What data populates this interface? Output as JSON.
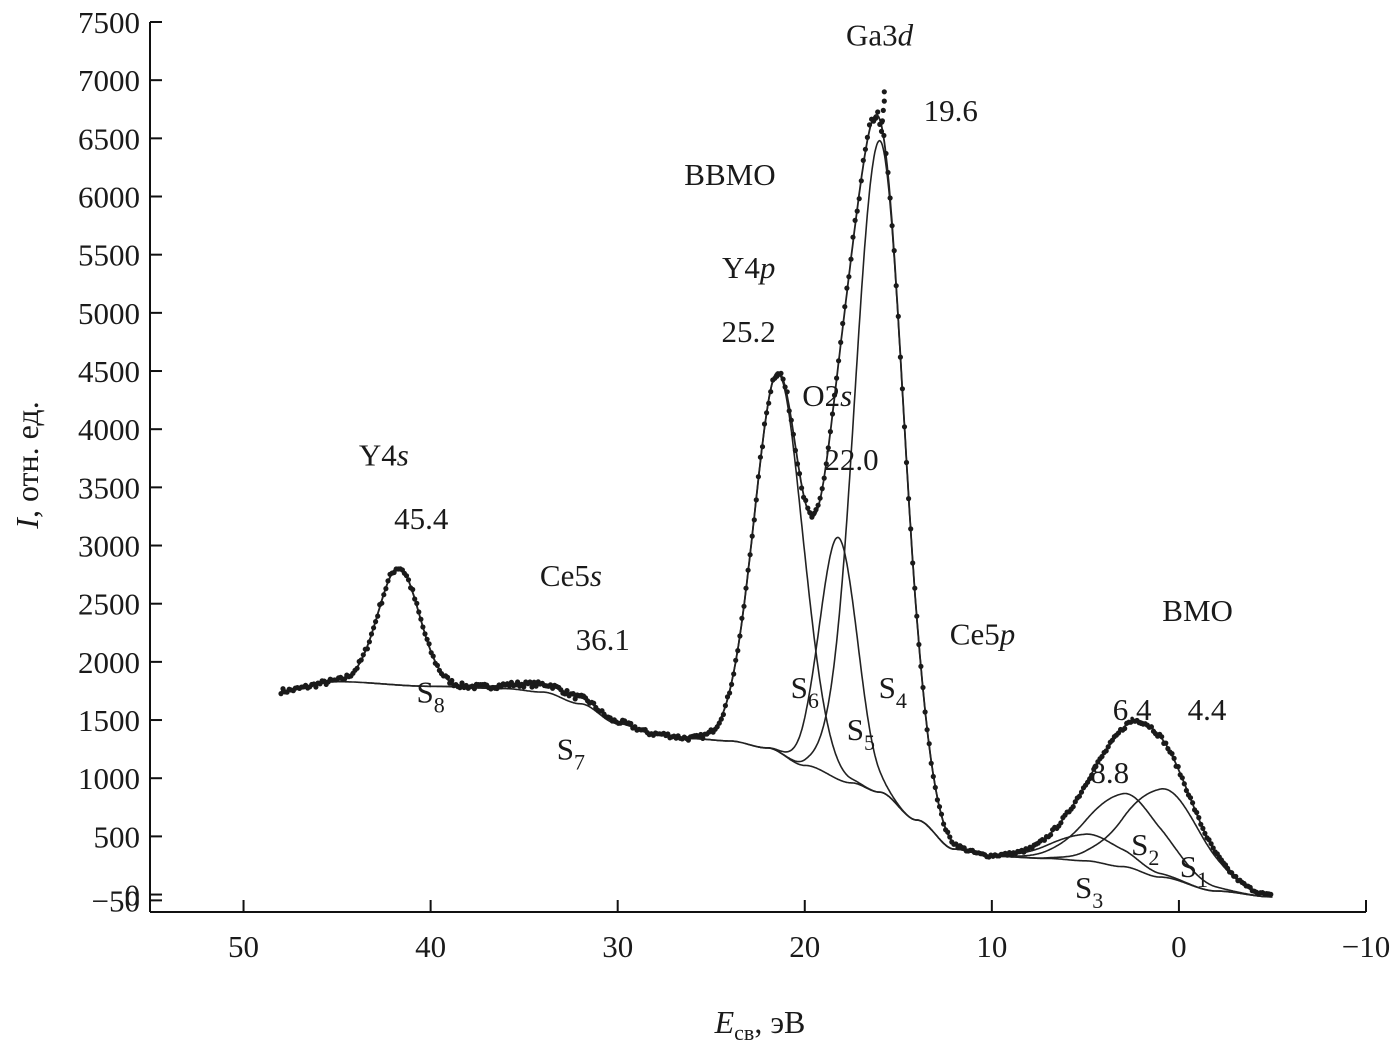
{
  "chart_data": {
    "type": "scatter",
    "xlabel_main": "E",
    "xlabel_sub": "св",
    "xlabel_unit": ", эВ",
    "ylabel_main": "I",
    "ylabel_unit": ", отн. ед.",
    "xlim": [
      55,
      -10
    ],
    "ylim": [
      -150,
      7500
    ],
    "x_reversed": true,
    "x_ticks": [
      50,
      40,
      30,
      20,
      10,
      0,
      -10
    ],
    "x_tick_labels": [
      "50",
      "40",
      "30",
      "20",
      "10",
      "0",
      "−10"
    ],
    "y_ticks": [
      -50,
      0,
      500,
      1000,
      1500,
      2000,
      2500,
      3000,
      3500,
      4000,
      4500,
      5000,
      5500,
      6000,
      6500,
      7000,
      7500
    ],
    "y_tick_labels": [
      "−50",
      "0",
      "500",
      "1000",
      "1500",
      "2000",
      "2500",
      "3000",
      "3500",
      "4000",
      "4500",
      "5000",
      "5500",
      "6000",
      "6500",
      "7000",
      "7500"
    ],
    "grid": false,
    "background_points": [
      [
        48,
        1750
      ],
      [
        45,
        1830
      ],
      [
        40,
        1790
      ],
      [
        36,
        1770
      ],
      [
        34,
        1740
      ],
      [
        32,
        1640
      ],
      [
        30,
        1470
      ],
      [
        28,
        1380
      ],
      [
        26,
        1340
      ],
      [
        24,
        1320
      ],
      [
        22,
        1260
      ],
      [
        20,
        1110
      ],
      [
        17.5,
        960
      ],
      [
        16,
        880
      ],
      [
        14,
        640
      ],
      [
        12,
        390
      ],
      [
        10,
        330
      ],
      [
        7,
        310
      ],
      [
        5,
        290
      ],
      [
        3,
        240
      ],
      [
        1,
        150
      ],
      [
        -2,
        30
      ],
      [
        -5,
        -20
      ]
    ],
    "peaks": [
      {
        "label_main": "S",
        "label_sub": "1",
        "center": 0.8,
        "height": 760,
        "width": 2.0
      },
      {
        "label_main": "S",
        "label_sub": "2",
        "center": 2.8,
        "height": 630,
        "width": 2.0
      },
      {
        "label_main": "S",
        "label_sub": "3",
        "center": 4.8,
        "height": 230,
        "width": 1.9
      },
      {
        "label_main": "S",
        "label_sub": "4",
        "center": 16.0,
        "height": 5600,
        "width": 1.3
      },
      {
        "label_main": "S",
        "label_sub": "5",
        "center": 18.2,
        "height": 2080,
        "width": 1.0
      },
      {
        "label_main": "S",
        "label_sub": "6",
        "center": 21.4,
        "height": 3250,
        "width": 1.3
      },
      {
        "label_main": "S",
        "label_sub": "7",
        "center": 33.5,
        "height": 70,
        "width": 2.0
      },
      {
        "label_main": "S",
        "label_sub": "8",
        "center": 41.7,
        "height": 1010,
        "width": 1.1
      }
    ],
    "annotations": [
      {
        "text": "Ga3",
        "italic": "d",
        "x": 16.0,
        "y": 7300
      },
      {
        "text": "19.6",
        "x": 12.2,
        "y": 6650
      },
      {
        "text": "ВВМО",
        "x": 24.0,
        "y": 6100
      },
      {
        "text": "Y4",
        "italic": "p",
        "x": 23.0,
        "y": 5300
      },
      {
        "text": "25.2",
        "x": 23.0,
        "y": 4750
      },
      {
        "text": "O2",
        "italic": "s",
        "x": 18.8,
        "y": 4200
      },
      {
        "text": "22.0",
        "x": 17.5,
        "y": 3650
      },
      {
        "text": "Y4",
        "italic": "s",
        "x": 42.5,
        "y": 3690
      },
      {
        "text": "45.4",
        "x": 40.5,
        "y": 3140
      },
      {
        "text": "Ce5",
        "italic": "s",
        "x": 32.5,
        "y": 2650
      },
      {
        "text": "36.1",
        "x": 30.8,
        "y": 2100
      },
      {
        "text": "Ce5",
        "italic": "p",
        "x": 10.5,
        "y": 2150
      },
      {
        "text": "ВМО",
        "x": -1.0,
        "y": 2350
      },
      {
        "text": "6.4",
        "x": 2.5,
        "y": 1500
      },
      {
        "text": "4.4",
        "x": -1.5,
        "y": 1500
      },
      {
        "text": "8.8",
        "x": 3.7,
        "y": 960
      }
    ],
    "peak_label_positions": [
      {
        "x": -0.8,
        "y": 150
      },
      {
        "x": 1.8,
        "y": 340
      },
      {
        "x": 4.8,
        "y": -30
      },
      {
        "x": 15.3,
        "y": 1690
      },
      {
        "x": 17.0,
        "y": 1330
      },
      {
        "x": 20.0,
        "y": 1690
      },
      {
        "x": 32.5,
        "y": 1160
      },
      {
        "x": 40.0,
        "y": 1650
      }
    ]
  }
}
